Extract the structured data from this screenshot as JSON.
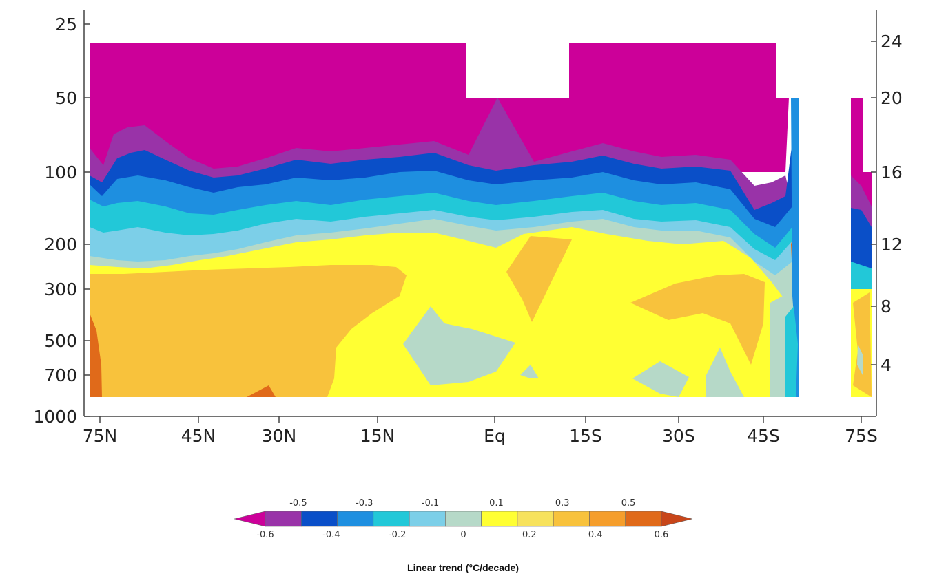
{
  "chart_data": {
    "type": "heatmap",
    "title": "",
    "xlabel": "",
    "ylabel": "",
    "x_ticks": [
      "75N",
      "45N",
      "30N",
      "15N",
      "Eq",
      "15S",
      "30S",
      "45S",
      "75S"
    ],
    "y_ticks_left": [
      "25",
      "50",
      "100",
      "200",
      "300",
      "500",
      "700",
      "1000"
    ],
    "y_ticks_right": [
      "24",
      "20",
      "16",
      "12",
      "8",
      "4"
    ],
    "colorbar": {
      "title": "Linear trend (°C/decade)",
      "levels": [
        -0.6,
        -0.5,
        -0.4,
        -0.3,
        -0.2,
        -0.1,
        0,
        0.1,
        0.2,
        0.3,
        0.4,
        0.5,
        0.6
      ],
      "labels_top": [
        "-0.5",
        "-0.3",
        "-0.1",
        "0.1",
        "0.3",
        "0.5"
      ],
      "labels_bottom": [
        "-0.6",
        "-0.4",
        "-0.2",
        "0",
        "0.2",
        "0.4",
        "0.6"
      ],
      "colors": [
        "#cc0099",
        "#9933a8",
        "#0a4fc8",
        "#1e8fe0",
        "#22c8d8",
        "#7ccfe8",
        "#b6d9c8",
        "#ffff33",
        "#f7e25c",
        "#f8c23c",
        "#f59e2c",
        "#e06a1a",
        "#c8461a"
      ]
    },
    "structure_description_levels": {
      "stratosphere": "-0.6 and below",
      "upper_troposphere": "0 to 0.3",
      "lower_troposphere": "0.1 to 0.3"
    }
  }
}
